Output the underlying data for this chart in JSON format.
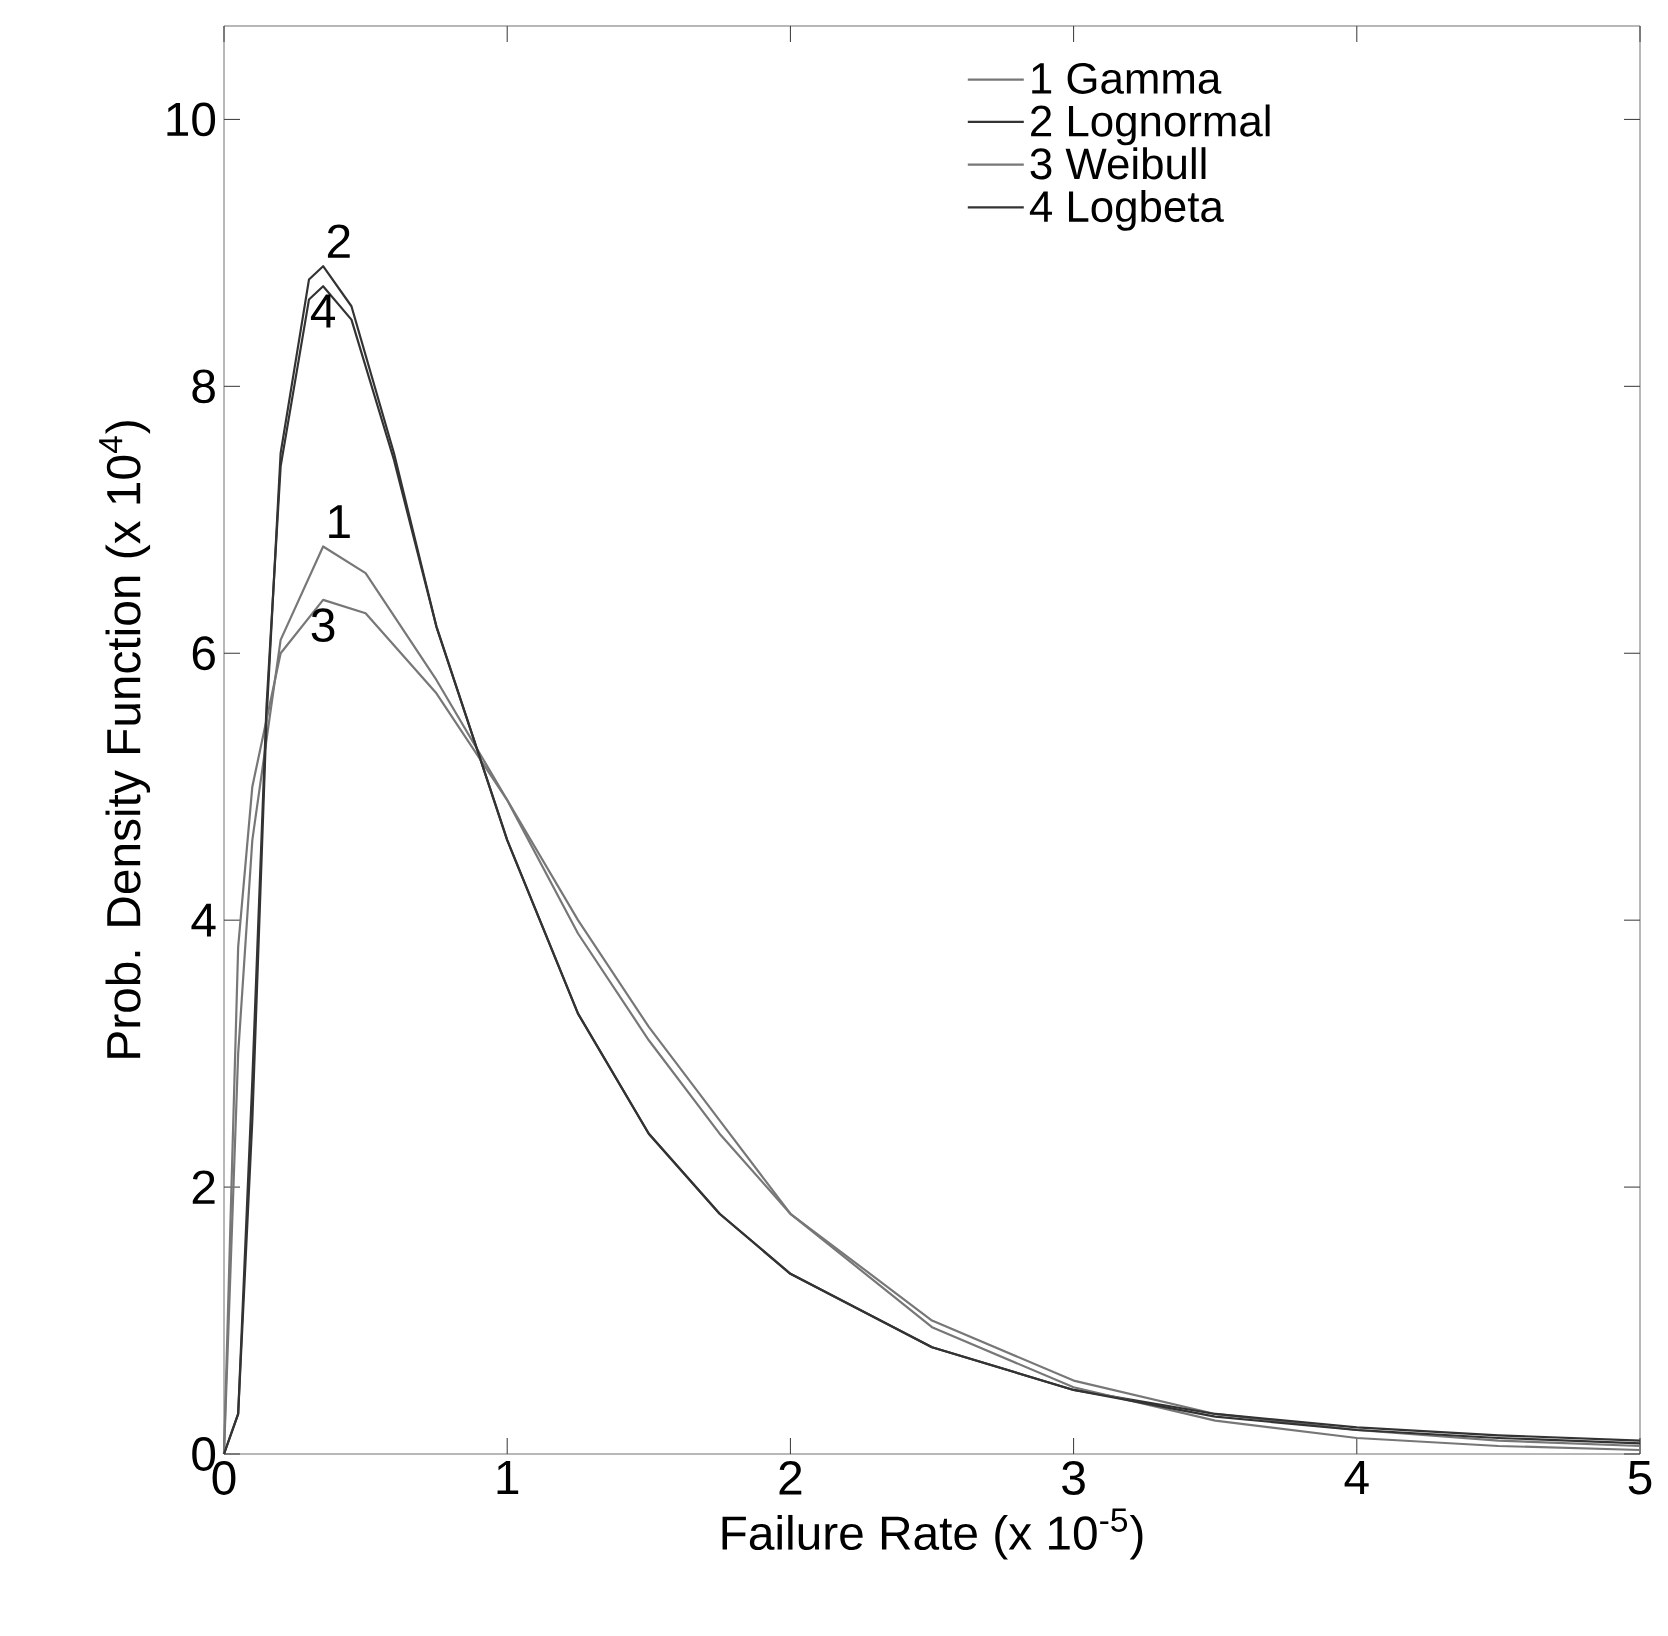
{
  "chart_data": {
    "type": "line",
    "xlabel": "Failure Rate (x 10$^{-5}$)",
    "ylabel": "Prob. Density Function (x 10$^{4}$)",
    "xlim": [
      0,
      5
    ],
    "ylim": [
      0,
      10.7
    ],
    "xticks": [
      0,
      1,
      2,
      3,
      4,
      5
    ],
    "yticks": [
      0,
      2,
      4,
      6,
      8,
      10
    ],
    "legend": "top right",
    "line_style": "solid",
    "series": [
      {
        "name": "1 Gamma",
        "color": "#777777",
        "x": [
          0,
          0.05,
          0.1,
          0.2,
          0.35,
          0.5,
          0.75,
          1.0,
          1.25,
          1.5,
          1.75,
          2.0,
          2.5,
          3.0,
          3.5,
          4.0,
          4.5,
          5.0
        ],
        "values": [
          0,
          3.0,
          4.6,
          6.1,
          6.8,
          6.6,
          5.8,
          4.9,
          3.9,
          3.1,
          2.4,
          1.8,
          1.0,
          0.55,
          0.3,
          0.18,
          0.1,
          0.06
        ]
      },
      {
        "name": "2 Lognormal",
        "color": "#333333",
        "x": [
          0,
          0.05,
          0.1,
          0.15,
          0.2,
          0.3,
          0.35,
          0.45,
          0.6,
          0.75,
          1.0,
          1.25,
          1.5,
          1.75,
          2.0,
          2.5,
          3.0,
          3.5,
          4.0,
          4.5,
          5.0
        ],
        "values": [
          0,
          0.3,
          2.5,
          5.5,
          7.5,
          8.8,
          8.9,
          8.6,
          7.5,
          6.2,
          4.6,
          3.3,
          2.4,
          1.8,
          1.35,
          0.8,
          0.48,
          0.3,
          0.2,
          0.14,
          0.1
        ]
      },
      {
        "name": "3 Weibull",
        "color": "#777777",
        "x": [
          0,
          0.05,
          0.1,
          0.2,
          0.35,
          0.5,
          0.75,
          1.0,
          1.25,
          1.5,
          1.75,
          2.0,
          2.5,
          3.0,
          3.5,
          4.0,
          4.5,
          5.0
        ],
        "values": [
          0,
          3.8,
          5.0,
          6.0,
          6.4,
          6.3,
          5.7,
          4.9,
          4.0,
          3.2,
          2.5,
          1.8,
          0.95,
          0.5,
          0.25,
          0.12,
          0.06,
          0.03
        ]
      },
      {
        "name": "4 Logbeta",
        "color": "#333333",
        "x": [
          0,
          0.05,
          0.1,
          0.15,
          0.2,
          0.3,
          0.35,
          0.45,
          0.6,
          0.75,
          1.0,
          1.25,
          1.5,
          1.75,
          2.0,
          2.5,
          3.0,
          3.5,
          4.0,
          4.5,
          5.0
        ],
        "values": [
          0,
          0.3,
          2.8,
          5.6,
          7.4,
          8.65,
          8.75,
          8.5,
          7.45,
          6.2,
          4.6,
          3.3,
          2.4,
          1.8,
          1.35,
          0.8,
          0.48,
          0.28,
          0.18,
          0.12,
          0.08
        ]
      }
    ],
    "annotations": [
      "1",
      "2",
      "3",
      "4"
    ]
  }
}
